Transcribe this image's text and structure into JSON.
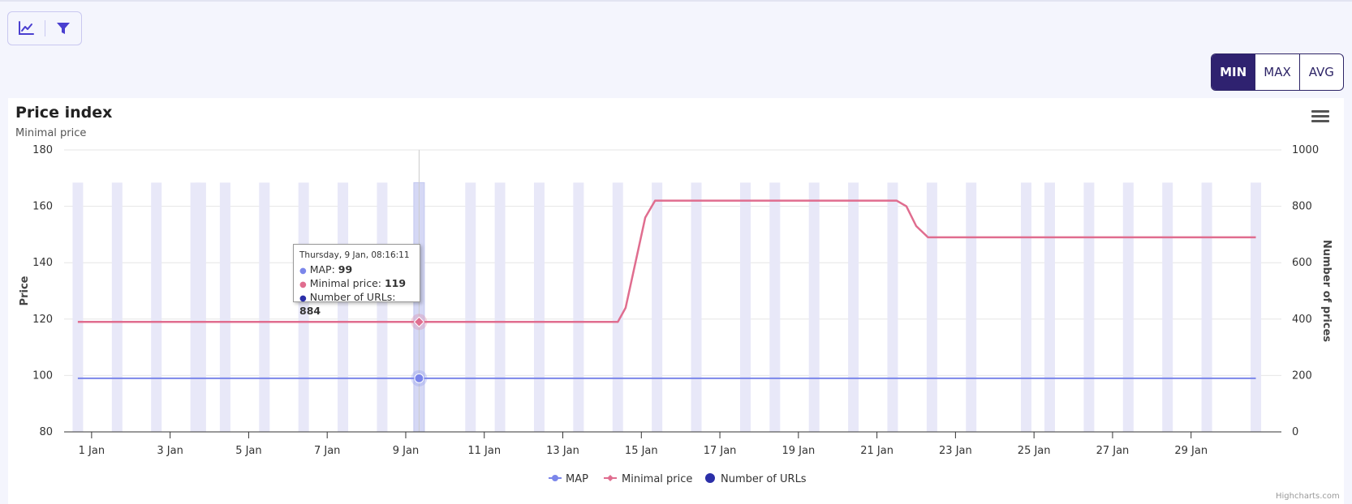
{
  "toolbar": {
    "chart_icon": "line-chart-icon",
    "filter_icon": "filter-icon"
  },
  "aggregation": {
    "options": [
      "MIN",
      "MAX",
      "AVG"
    ],
    "selected": "MIN"
  },
  "colors": {
    "map": "#7b86ea",
    "minimal_price": "#e06d8f",
    "urls": "#2b2fa8",
    "bars": "#e8e8f8",
    "accent": "#2f2270"
  },
  "tooltip": {
    "header": "Thursday, 9 Jan, 08:16:11",
    "rows": [
      {
        "label": "MAP: ",
        "value": "99"
      },
      {
        "label": "Minimal price: ",
        "value": "119"
      },
      {
        "label": "Number of URLs: ",
        "value": "884"
      }
    ]
  },
  "credits": "Highcharts.com",
  "chart_data": {
    "type": "line",
    "title": "Price index",
    "subtitle": "Minimal price",
    "ylabel": "Price",
    "y2label": "Number of prices",
    "ylim": [
      80,
      180
    ],
    "y2lim": [
      0,
      1000
    ],
    "yticks": [
      80,
      100,
      120,
      140,
      160,
      180
    ],
    "y2ticks": [
      0,
      200,
      400,
      600,
      800,
      1000
    ],
    "xlim": [
      0.3,
      31.3
    ],
    "xticks": [
      {
        "x": 1,
        "label": "1 Jan"
      },
      {
        "x": 3,
        "label": "3 Jan"
      },
      {
        "x": 5,
        "label": "5 Jan"
      },
      {
        "x": 7,
        "label": "7 Jan"
      },
      {
        "x": 9,
        "label": "9 Jan"
      },
      {
        "x": 11,
        "label": "11 Jan"
      },
      {
        "x": 13,
        "label": "13 Jan"
      },
      {
        "x": 15,
        "label": "15 Jan"
      },
      {
        "x": 17,
        "label": "17 Jan"
      },
      {
        "x": 19,
        "label": "19 Jan"
      },
      {
        "x": 21,
        "label": "21 Jan"
      },
      {
        "x": 23,
        "label": "23 Jan"
      },
      {
        "x": 25,
        "label": "25 Jan"
      },
      {
        "x": 27,
        "label": "27 Jan"
      },
      {
        "x": 29,
        "label": "29 Jan"
      }
    ],
    "hover_x": 9.34,
    "series": [
      {
        "name": "MAP",
        "axis": "left",
        "points": [
          [
            0.65,
            99
          ],
          [
            30.65,
            99
          ]
        ]
      },
      {
        "name": "Minimal price",
        "axis": "left",
        "points": [
          [
            0.65,
            119
          ],
          [
            14.4,
            119
          ],
          [
            14.6,
            124
          ],
          [
            14.85,
            140
          ],
          [
            15.1,
            156
          ],
          [
            15.35,
            162
          ],
          [
            21.5,
            162
          ],
          [
            21.75,
            160
          ],
          [
            22.0,
            153
          ],
          [
            22.3,
            149
          ],
          [
            30.65,
            149
          ]
        ]
      },
      {
        "name": "Number of URLs",
        "type": "column",
        "axis": "right",
        "value": 884,
        "x": [
          0.65,
          1.65,
          2.65,
          3.65,
          3.78,
          4.4,
          5.4,
          6.4,
          7.4,
          8.4,
          9.34,
          10.65,
          11.4,
          12.4,
          13.4,
          14.4,
          15.4,
          16.4,
          17.65,
          18.4,
          19.4,
          20.4,
          21.4,
          22.4,
          23.4,
          24.8,
          25.4,
          26.4,
          27.4,
          28.4,
          29.4,
          30.65
        ]
      }
    ],
    "legend": [
      "MAP",
      "Minimal price",
      "Number of URLs"
    ],
    "legend_position": "bottom-center",
    "grid": true
  }
}
